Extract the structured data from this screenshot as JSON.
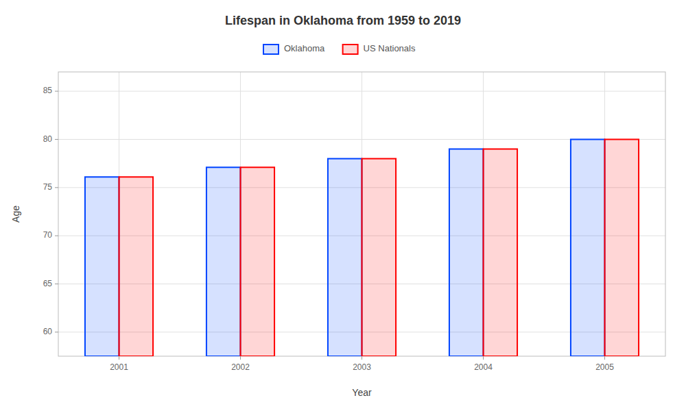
{
  "chart_data": {
    "type": "bar",
    "title": "Lifespan in Oklahoma from 1959 to 2019",
    "x_label": "Year",
    "y_label": "Age",
    "categories": [
      "2001",
      "2002",
      "2003",
      "2004",
      "2005"
    ],
    "series": [
      {
        "name": "Oklahoma",
        "color": "#0044ff",
        "values": [
          76.1,
          77.1,
          78.0,
          79.0,
          80.0
        ]
      },
      {
        "name": "US Nationals",
        "color": "#ff0000",
        "values": [
          76.1,
          77.1,
          78.0,
          79.0,
          80.0
        ]
      }
    ],
    "ylim": [
      57.5,
      87
    ],
    "yticks": [
      60,
      65,
      70,
      75,
      80,
      85
    ],
    "grid": true,
    "legend": "top"
  }
}
